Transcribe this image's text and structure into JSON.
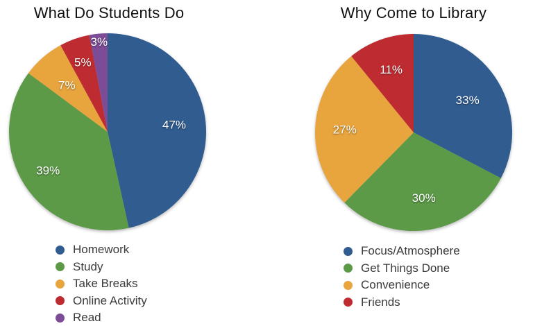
{
  "page": {
    "background": "#FFFFFF",
    "title_color": "#111111",
    "legend_text_color": "#3A3A3A",
    "slice_label_color": "#FFFFFF"
  },
  "chart_data": [
    {
      "type": "pie",
      "title": "What Do Students Do",
      "start_angle_deg": 0,
      "direction": "clockwise",
      "legend_position": "bottom",
      "categories": [
        "Homework",
        "Study",
        "Take Breaks",
        "Online Activity",
        "Read"
      ],
      "values": [
        47,
        39,
        7,
        5,
        3
      ],
      "slices": [
        {
          "label": "Homework",
          "value": 47,
          "display": "47%",
          "color": "#305C90",
          "label_r": 0.68
        },
        {
          "label": "Study",
          "value": 39,
          "display": "39%",
          "color": "#5C9A48",
          "label_r": 0.72
        },
        {
          "label": "Take Breaks",
          "value": 7,
          "display": "7%",
          "color": "#E8A43D",
          "label_r": 0.63
        },
        {
          "label": "Online Activity",
          "value": 5,
          "display": "5%",
          "color": "#BE2C31",
          "label_r": 0.75
        },
        {
          "label": "Read",
          "value": 3,
          "display": "3%",
          "color": "#7C4D96",
          "label_r": 0.92
        }
      ]
    },
    {
      "type": "pie",
      "title": "Why Come to Library",
      "start_angle_deg": 0,
      "direction": "clockwise",
      "legend_position": "bottom",
      "categories": [
        "Focus/Atmosphere",
        "Get Things Done",
        "Convenience",
        "Friends"
      ],
      "values": [
        33,
        30,
        27,
        11
      ],
      "slices": [
        {
          "label": "Focus/Atmosphere",
          "value": 33,
          "display": "33%",
          "color": "#305C90",
          "label_r": 0.64
        },
        {
          "label": "Get Things Done",
          "value": 30,
          "display": "30%",
          "color": "#5C9A48",
          "label_r": 0.67
        },
        {
          "label": "Convenience",
          "value": 27,
          "display": "27%",
          "color": "#E8A43D",
          "label_r": 0.7
        },
        {
          "label": "Friends",
          "value": 11,
          "display": "11%",
          "color": "#BE2C31",
          "label_r": 0.68
        }
      ]
    }
  ]
}
